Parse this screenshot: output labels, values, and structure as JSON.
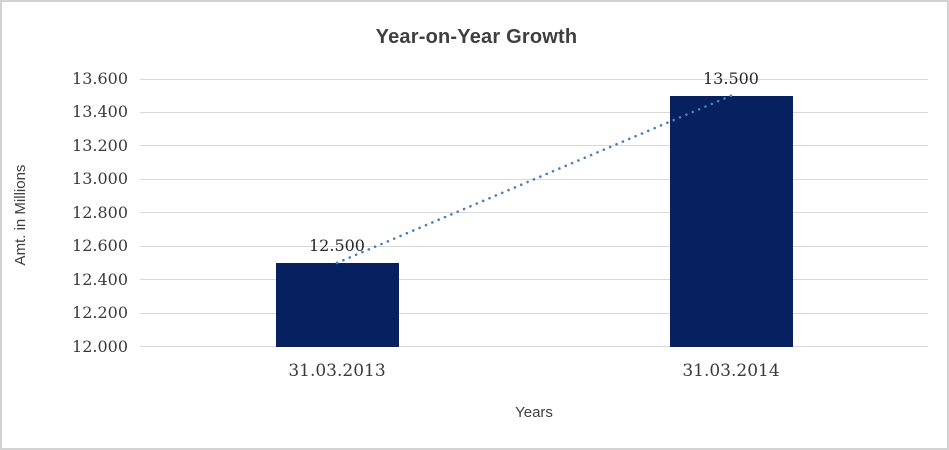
{
  "chart_data": {
    "type": "bar",
    "title": "Year-on-Year Growth",
    "xlabel": "Years",
    "ylabel": "Amt. in Millions",
    "categories": [
      "31.03.2013",
      "31.03.2014"
    ],
    "values": [
      12.5,
      13.5
    ],
    "value_labels": [
      "12.500",
      "13.500"
    ],
    "ylim": [
      12.0,
      13.6
    ],
    "ytick_step": 0.2,
    "yticks": [
      {
        "value": 12.0,
        "label": "12.000"
      },
      {
        "value": 12.2,
        "label": "12.200"
      },
      {
        "value": 12.4,
        "label": "12.400"
      },
      {
        "value": 12.6,
        "label": "12.600"
      },
      {
        "value": 12.8,
        "label": "12.800"
      },
      {
        "value": 13.0,
        "label": "13.000"
      },
      {
        "value": 13.2,
        "label": "13.200"
      },
      {
        "value": 13.4,
        "label": "13.400"
      },
      {
        "value": 13.6,
        "label": "13.600"
      }
    ],
    "grid": true,
    "legend": "none",
    "trendline": {
      "style": "dotted",
      "connects": [
        12.5,
        13.5
      ]
    },
    "colors": {
      "bar": "#062060",
      "trendline": "#4a7ebb",
      "gridline": "#d9d9d9",
      "title_text": "#3f3f3f",
      "tick_text": "#3a3a3a",
      "frame_border": "#d2d2d2"
    }
  }
}
